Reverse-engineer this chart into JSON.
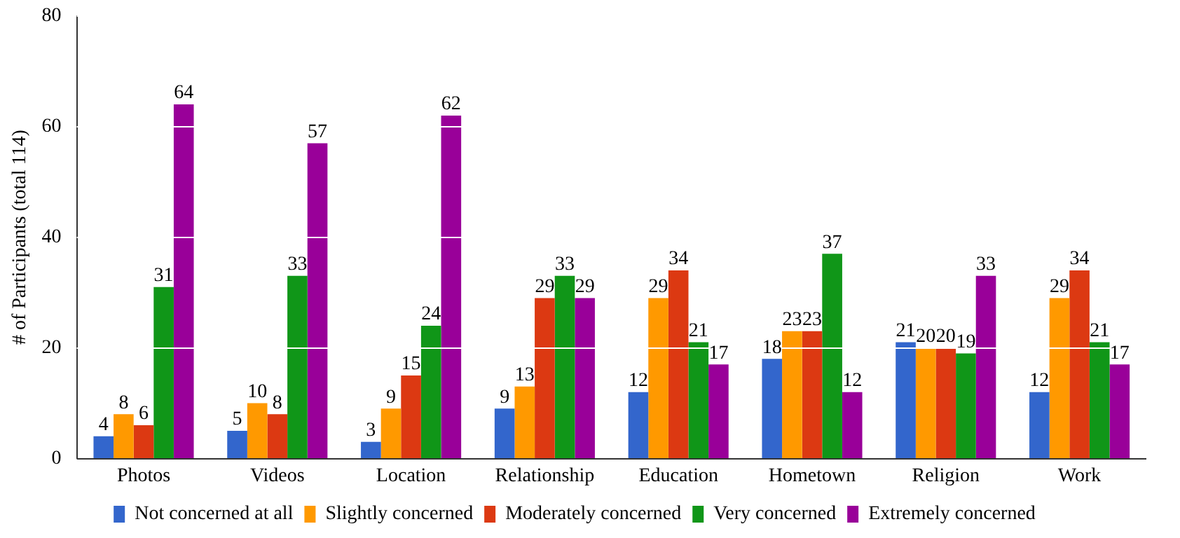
{
  "chart_data": {
    "type": "bar",
    "ylabel": "# of Participants (total 114)",
    "categories": [
      "Photos",
      "Videos",
      "Location",
      "Relationship",
      "Education",
      "Hometown",
      "Religion",
      "Work"
    ],
    "series": [
      {
        "name": "Not concerned at all",
        "color": "#3366cc",
        "values": [
          4,
          5,
          3,
          9,
          12,
          18,
          21,
          12
        ]
      },
      {
        "name": "Slightly concerned",
        "color": "#ff9900",
        "values": [
          8,
          10,
          9,
          13,
          29,
          23,
          20,
          29
        ]
      },
      {
        "name": "Moderately concerned",
        "color": "#dc3912",
        "values": [
          6,
          8,
          15,
          29,
          34,
          23,
          20,
          34
        ]
      },
      {
        "name": "Very concerned",
        "color": "#109618",
        "values": [
          31,
          33,
          24,
          33,
          21,
          37,
          19,
          21
        ]
      },
      {
        "name": "Extremely concerned",
        "color": "#990099",
        "values": [
          64,
          57,
          62,
          29,
          17,
          12,
          33,
          17
        ]
      }
    ],
    "ylim": [
      0,
      80
    ],
    "yticks": [
      0,
      20,
      40,
      60,
      80
    ],
    "grid": "y",
    "legend": "bottom",
    "data_labels": true
  }
}
